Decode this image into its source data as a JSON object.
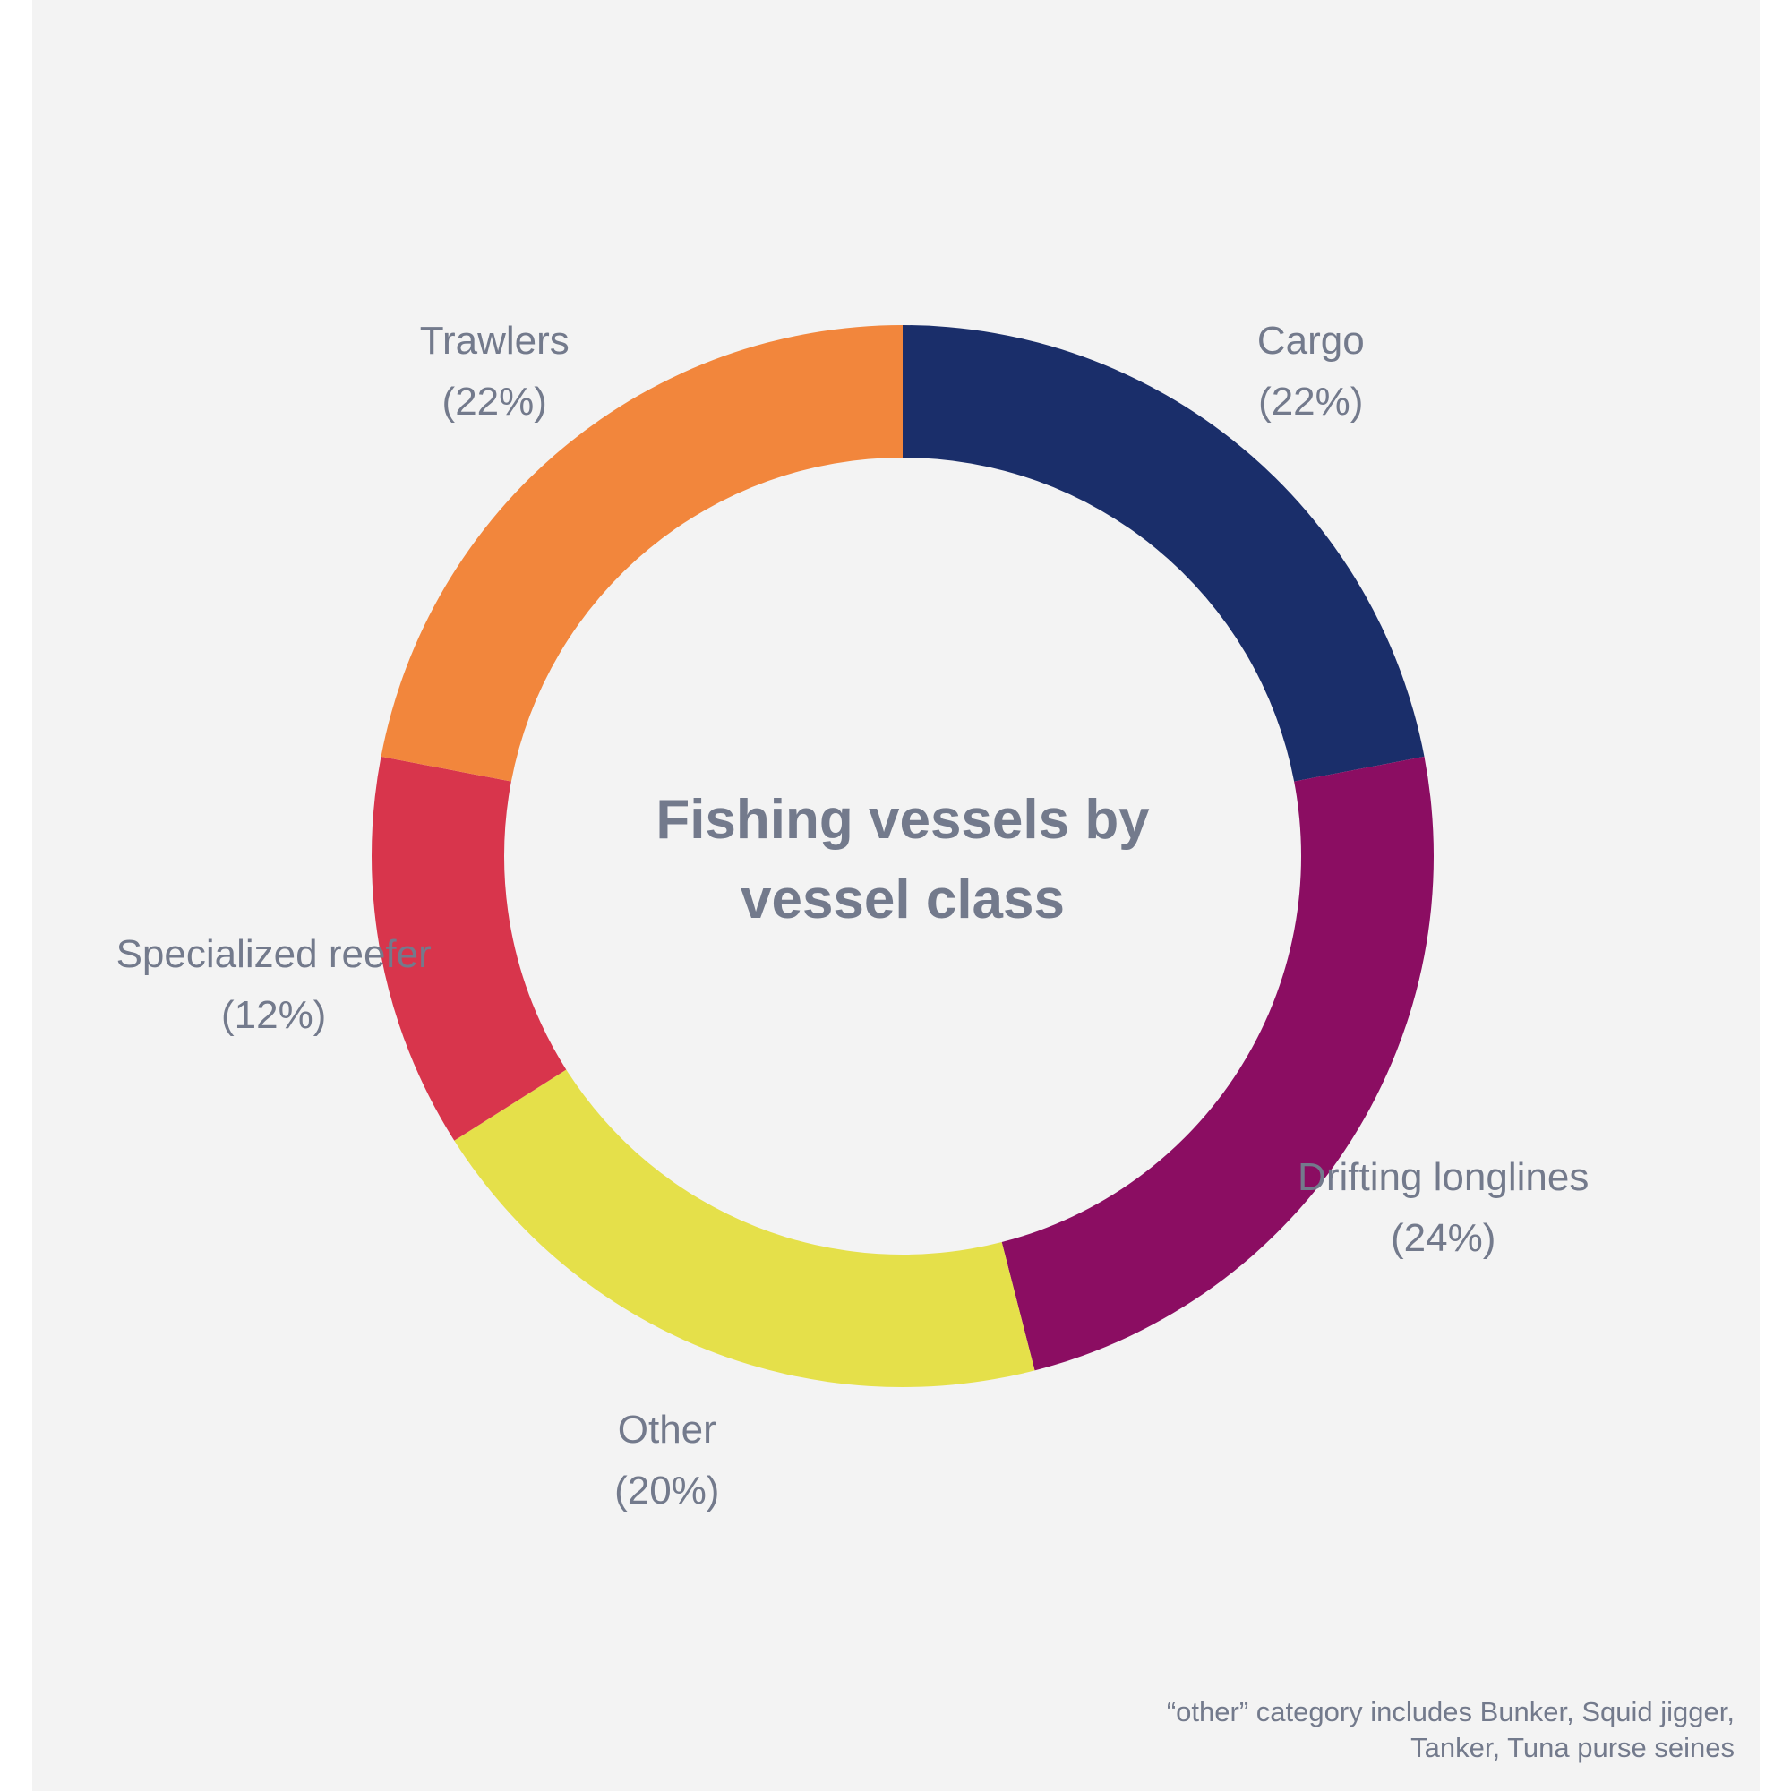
{
  "chart_data": {
    "type": "donut",
    "center_title": [
      "Fishing vessels by",
      "vessel class"
    ],
    "slices": [
      {
        "name": "Cargo",
        "value": 22,
        "pct_label": "(22%)",
        "color": "#1a2e6a"
      },
      {
        "name": "Drifting longlines",
        "value": 24,
        "pct_label": "(24%)",
        "color": "#8b0d62"
      },
      {
        "name": "Other",
        "value": 20,
        "pct_label": "(20%)",
        "color": "#e5e04a"
      },
      {
        "name": "Specialized reefer",
        "value": 12,
        "pct_label": "(12%)",
        "color": "#d8354c"
      },
      {
        "name": "Trawlers",
        "value": 22,
        "pct_label": "(22%)",
        "color": "#f2863c"
      }
    ]
  },
  "footnote": {
    "line1": "“other” category includes Bunker, Squid jigger,",
    "line2": "Tanker, Tuna purse seines"
  },
  "colors": {
    "background": "#f3f3f3",
    "text": "#737a8c"
  }
}
